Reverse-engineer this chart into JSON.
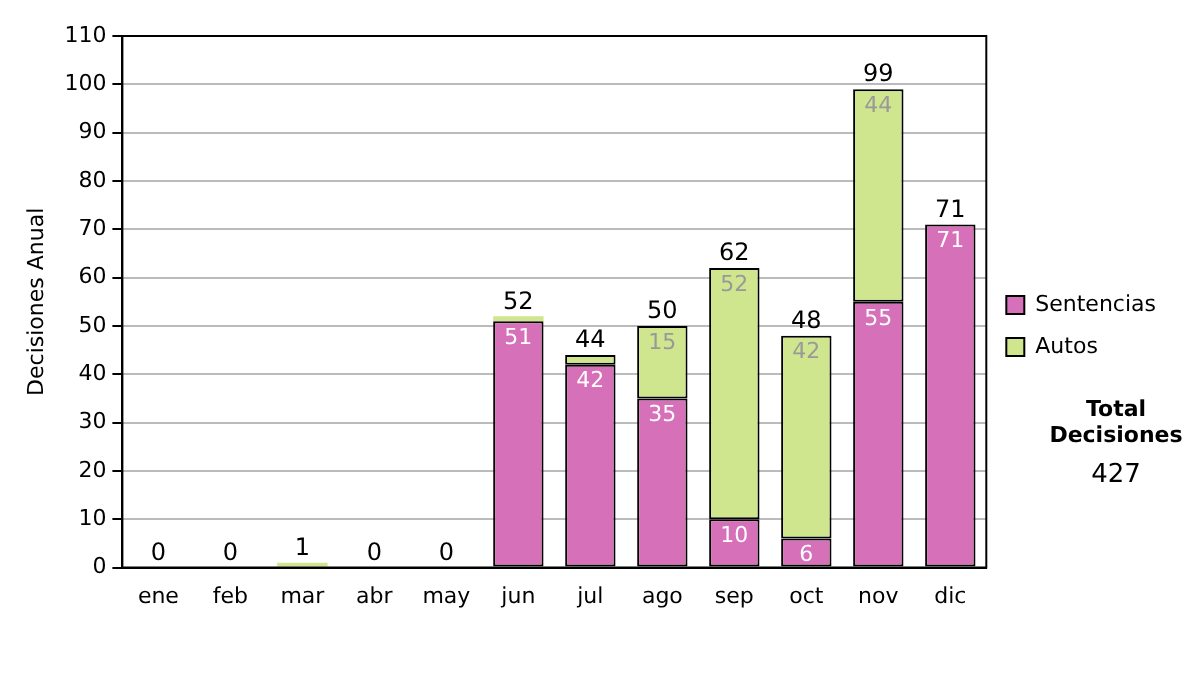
{
  "chart_data": {
    "type": "bar",
    "stacked": true,
    "ylabel": "Decisiones Anual",
    "categories": [
      "ene",
      "feb",
      "mar",
      "abr",
      "may",
      "jun",
      "jul",
      "ago",
      "sep",
      "oct",
      "nov",
      "dic"
    ],
    "series": [
      {
        "name": "Sentencias",
        "color": "#d670b8",
        "values": [
          0,
          0,
          0,
          0,
          0,
          51,
          42,
          35,
          10,
          6,
          55,
          71
        ],
        "value_labels": [
          null,
          null,
          null,
          null,
          null,
          "51",
          "42",
          "35",
          "10",
          "6",
          "55",
          "71"
        ]
      },
      {
        "name": "Autos",
        "color": "#cfe68e",
        "values": [
          0,
          0,
          1,
          0,
          0,
          1,
          2,
          15,
          52,
          42,
          44,
          0
        ],
        "value_labels": [
          null,
          null,
          null,
          null,
          null,
          null,
          null,
          "15",
          "52",
          "42",
          "44",
          null
        ]
      }
    ],
    "totals": [
      "0",
      "0",
      "1",
      "0",
      "0",
      "52",
      "44",
      "50",
      "62",
      "48",
      "99",
      "71"
    ],
    "ylim": [
      0,
      110
    ],
    "yticks": [
      0,
      10,
      20,
      30,
      40,
      50,
      60,
      70,
      80,
      90,
      100,
      110
    ],
    "grid": "y",
    "legend": "right",
    "annotations": [
      "Total Decisiones",
      "427"
    ]
  }
}
